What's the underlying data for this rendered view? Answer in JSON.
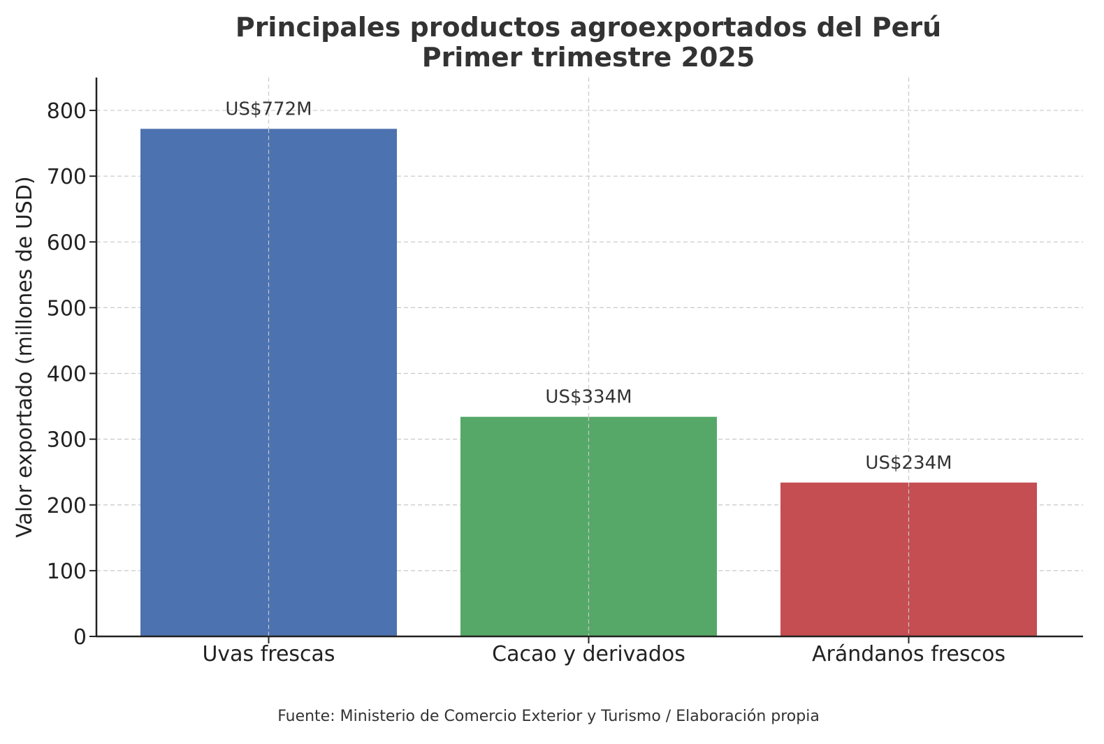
{
  "chart_data": {
    "type": "bar",
    "title": "Principales productos agroexportados del Perú",
    "subtitle": "Primer trimestre 2025",
    "ylabel": "Valor exportado (millones de USD)",
    "xlabel": "",
    "categories": [
      "Uvas frescas",
      "Cacao y derivados",
      "Arándanos frescos"
    ],
    "values": [
      772,
      334,
      234
    ],
    "data_labels": [
      "US$772M",
      "US$334M",
      "US$234M"
    ],
    "colors": [
      "#4c72b0",
      "#55a868",
      "#c44e52"
    ],
    "ylim": [
      0,
      850
    ],
    "yticks": [
      0,
      100,
      200,
      300,
      400,
      500,
      600,
      700,
      800
    ],
    "grid": true,
    "source": "Fuente: Ministerio de Comercio Exterior y Turismo / Elaboración propia"
  }
}
